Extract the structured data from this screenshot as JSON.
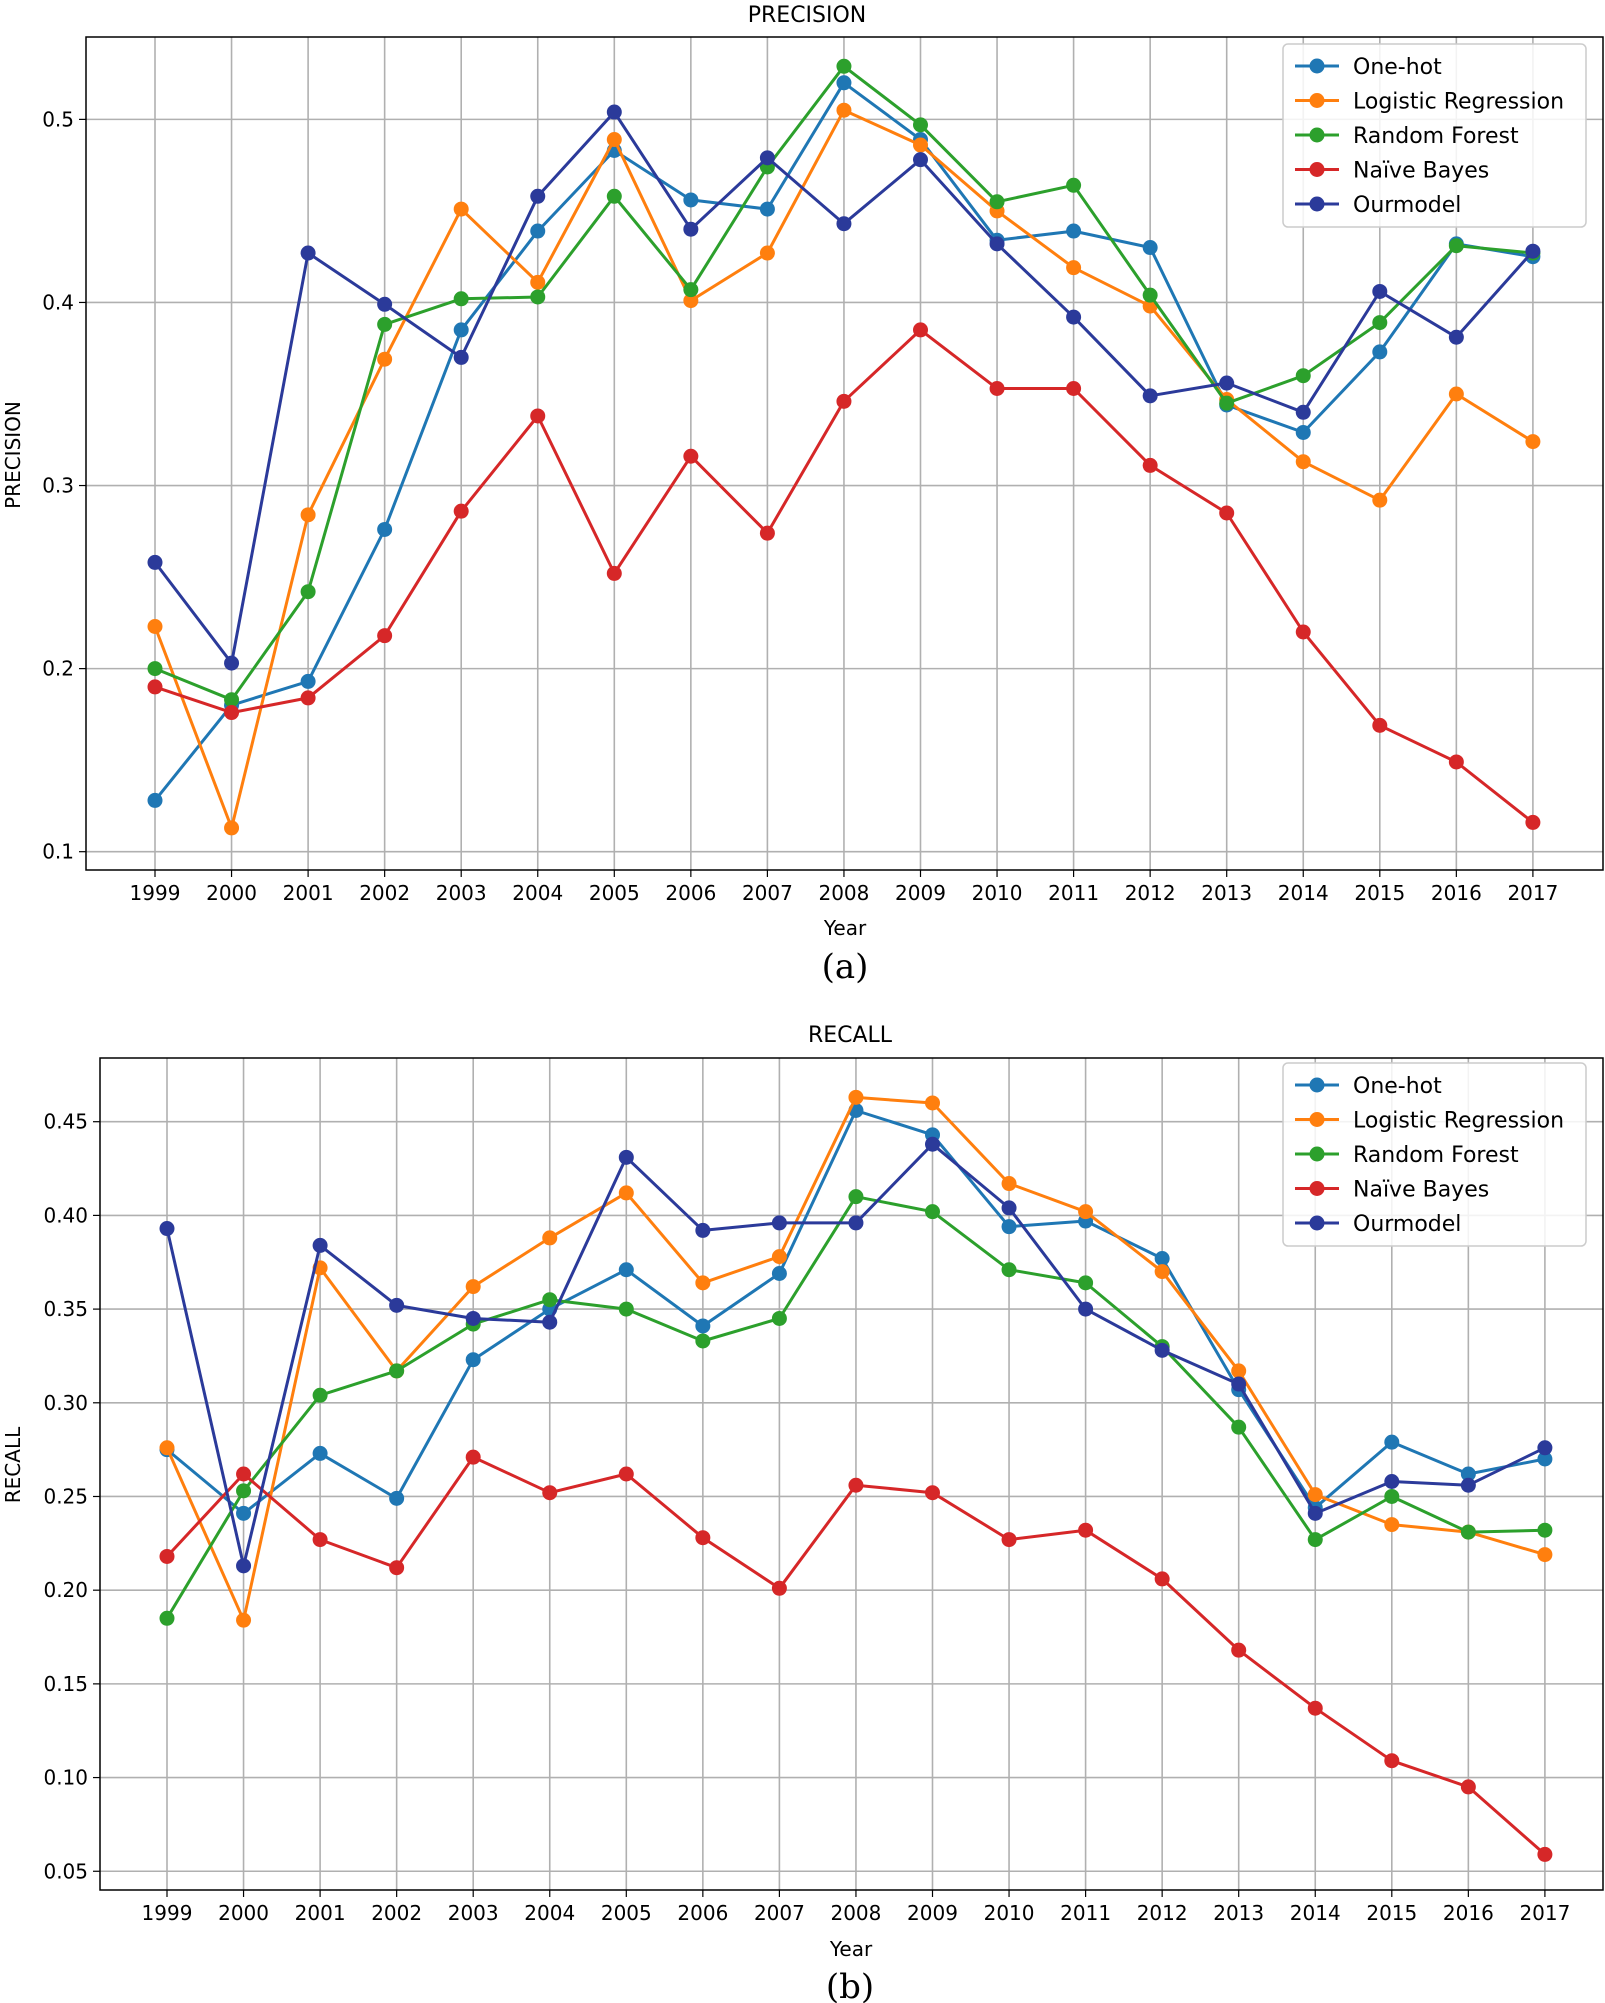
{
  "colors": {
    "One-hot": "#1f77b4",
    "Logistic Regression": "#ff7f0e",
    "Random Forest": "#2ca02c",
    "Naïve Bayes": "#d62728",
    "Ourmodel": "#2b3a9a"
  },
  "chart_data": [
    {
      "type": "line",
      "title": "PRECISION",
      "xlabel": "Year",
      "ylabel": "PRECISION",
      "caption": "(a)",
      "categories": [
        "1999",
        "2000",
        "2001",
        "2002",
        "2003",
        "2004",
        "2005",
        "2006",
        "2007",
        "2008",
        "2009",
        "2010",
        "2011",
        "2012",
        "2013",
        "2014",
        "2015",
        "2016",
        "2017"
      ],
      "ylim": [
        0.09,
        0.545
      ],
      "yticks": [
        0.1,
        0.2,
        0.3,
        0.4,
        0.5
      ],
      "ytick_labels": [
        "0.1",
        "0.2",
        "0.3",
        "0.4",
        "0.5"
      ],
      "grid": true,
      "legend_position": "top-right",
      "series": [
        {
          "name": "One-hot",
          "values": [
            0.128,
            0.18,
            0.193,
            0.276,
            0.385,
            0.439,
            0.483,
            0.456,
            0.451,
            0.52,
            0.489,
            0.434,
            0.439,
            0.43,
            0.344,
            0.329,
            0.373,
            0.432,
            0.425
          ]
        },
        {
          "name": "Logistic Regression",
          "values": [
            0.223,
            0.113,
            0.284,
            0.369,
            0.451,
            0.411,
            0.489,
            0.401,
            0.427,
            0.505,
            0.486,
            0.45,
            0.419,
            0.398,
            0.347,
            0.313,
            0.292,
            0.35,
            0.324
          ]
        },
        {
          "name": "Random Forest",
          "values": [
            0.2,
            0.183,
            0.242,
            0.388,
            0.402,
            0.403,
            0.458,
            0.407,
            0.474,
            0.529,
            0.497,
            0.455,
            0.464,
            0.404,
            0.345,
            0.36,
            0.389,
            0.431,
            0.427
          ]
        },
        {
          "name": "Naïve Bayes",
          "values": [
            0.19,
            0.176,
            0.184,
            0.218,
            0.286,
            0.338,
            0.252,
            0.316,
            0.274,
            0.346,
            0.385,
            0.353,
            0.353,
            0.311,
            0.285,
            0.22,
            0.169,
            0.149,
            0.116
          ]
        },
        {
          "name": "Ourmodel",
          "values": [
            0.258,
            0.203,
            0.427,
            0.399,
            0.37,
            0.458,
            0.504,
            0.44,
            0.479,
            0.443,
            0.478,
            0.432,
            0.392,
            0.349,
            0.356,
            0.34,
            0.406,
            0.381,
            0.428
          ]
        }
      ]
    },
    {
      "type": "line",
      "title": "RECALL",
      "xlabel": "Year",
      "ylabel": "RECALL",
      "caption": "(b)",
      "categories": [
        "1999",
        "2000",
        "2001",
        "2002",
        "2003",
        "2004",
        "2005",
        "2006",
        "2007",
        "2008",
        "2009",
        "2010",
        "2011",
        "2012",
        "2013",
        "2014",
        "2015",
        "2016",
        "2017"
      ],
      "ylim": [
        0.04,
        0.484
      ],
      "yticks": [
        0.05,
        0.1,
        0.15,
        0.2,
        0.25,
        0.3,
        0.35,
        0.4,
        0.45
      ],
      "ytick_labels": [
        "0.05",
        "0.10",
        "0.15",
        "0.20",
        "0.25",
        "0.30",
        "0.35",
        "0.40",
        "0.45"
      ],
      "grid": true,
      "legend_position": "top-right",
      "series": [
        {
          "name": "One-hot",
          "values": [
            0.275,
            0.241,
            0.273,
            0.249,
            0.323,
            0.35,
            0.371,
            0.341,
            0.369,
            0.456,
            0.443,
            0.394,
            0.397,
            0.377,
            0.307,
            0.244,
            0.279,
            0.262,
            0.27
          ]
        },
        {
          "name": "Logistic Regression",
          "values": [
            0.276,
            0.184,
            0.372,
            0.317,
            0.362,
            0.388,
            0.412,
            0.364,
            0.378,
            0.463,
            0.46,
            0.417,
            0.402,
            0.37,
            0.317,
            0.251,
            0.235,
            0.231,
            0.219
          ]
        },
        {
          "name": "Random Forest",
          "values": [
            0.185,
            0.253,
            0.304,
            0.317,
            0.342,
            0.355,
            0.35,
            0.333,
            0.345,
            0.41,
            0.402,
            0.371,
            0.364,
            0.33,
            0.287,
            0.227,
            0.25,
            0.231,
            0.232
          ]
        },
        {
          "name": "Naïve Bayes",
          "values": [
            0.218,
            0.262,
            0.227,
            0.212,
            0.271,
            0.252,
            0.262,
            0.228,
            0.201,
            0.256,
            0.252,
            0.227,
            0.232,
            0.206,
            0.168,
            0.137,
            0.109,
            0.095,
            0.059
          ]
        },
        {
          "name": "Ourmodel",
          "values": [
            0.393,
            0.213,
            0.384,
            0.352,
            0.345,
            0.343,
            0.431,
            0.392,
            0.396,
            0.396,
            0.438,
            0.404,
            0.35,
            0.328,
            0.31,
            0.241,
            0.258,
            0.256,
            0.276
          ]
        }
      ]
    }
  ]
}
